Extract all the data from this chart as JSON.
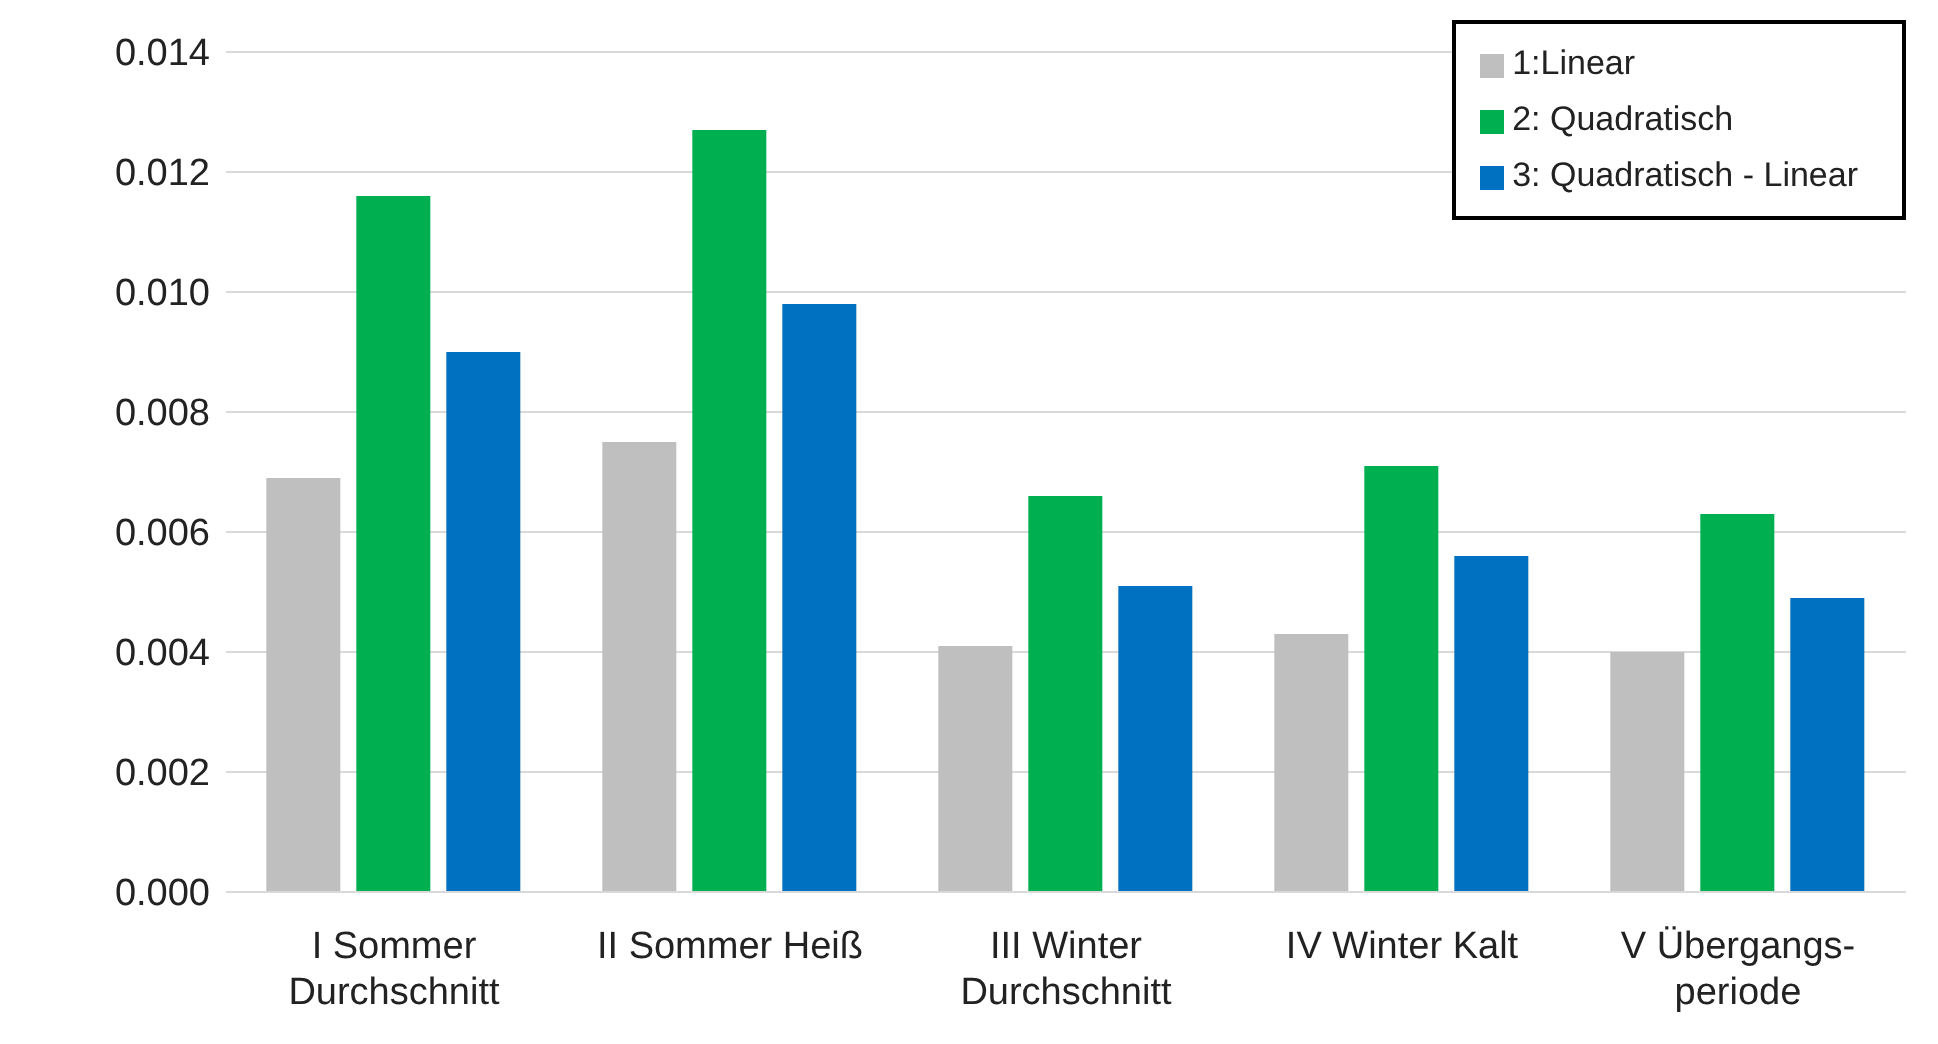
{
  "chart_data": {
    "type": "bar",
    "categories": [
      "I Sommer Durchschnitt",
      "II Sommer Heiß",
      "III Winter Durchschnitt",
      "IV Winter Kalt",
      "V Übergangs-periode"
    ],
    "series": [
      {
        "name": "1:Linear",
        "color": "#bfbfbf",
        "values": [
          0.0069,
          0.0075,
          0.0041,
          0.0043,
          0.004
        ]
      },
      {
        "name": "2: Quadratisch",
        "color": "#00b050",
        "values": [
          0.0116,
          0.0127,
          0.0066,
          0.0071,
          0.0063
        ]
      },
      {
        "name": "3: Quadratisch - Linear",
        "color": "#0070c0",
        "values": [
          0.009,
          0.0098,
          0.0051,
          0.0056,
          0.0049
        ]
      }
    ],
    "ylim": [
      0,
      0.014
    ],
    "yticks": [
      {
        "value": 0,
        "label": "0.000"
      },
      {
        "value": 0.002,
        "label": "0.002"
      },
      {
        "value": 0.004,
        "label": "0.004"
      },
      {
        "value": 0.006,
        "label": "0.006"
      },
      {
        "value": 0.008,
        "label": "0.008"
      },
      {
        "value": 0.01,
        "label": "0.010"
      },
      {
        "value": 0.012,
        "label": "0.012"
      },
      {
        "value": 0.014,
        "label": "0.014"
      }
    ],
    "grid": "y",
    "legend": "top right"
  }
}
